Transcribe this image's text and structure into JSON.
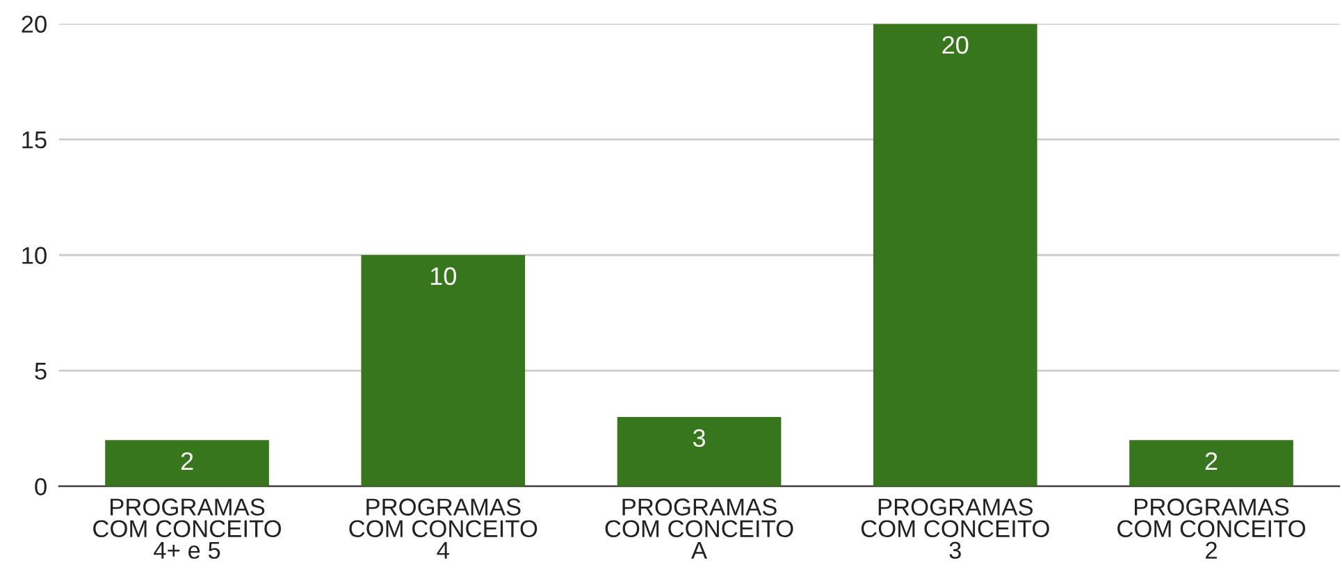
{
  "chart_data": {
    "type": "bar",
    "categories": [
      "PROGRAMAS\nCOM CONCEITO\n4+ e 5",
      "PROGRAMAS\nCOM CONCEITO\n4",
      "PROGRAMAS\nCOM CONCEITO\nA",
      "PROGRAMAS\nCOM CONCEITO\n3",
      "PROGRAMAS\nCOM CONCEITO\n2"
    ],
    "values": [
      2,
      10,
      3,
      20,
      2
    ],
    "color": "#38761d",
    "ylim": [
      0,
      20
    ],
    "yticks": [
      0,
      5,
      10,
      15,
      20
    ],
    "grid": "y",
    "data_labels": true,
    "legend": false
  }
}
